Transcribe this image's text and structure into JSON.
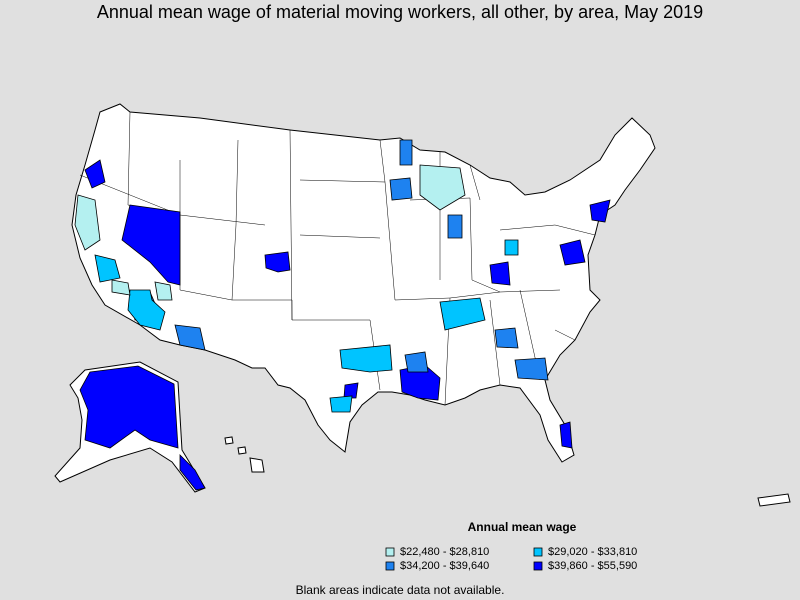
{
  "title": "Annual mean wage of material moving workers, all other, by area, May 2019",
  "legend": {
    "title": "Annual mean wage",
    "entries": [
      {
        "label": "$22,480 - $28,810",
        "color": "#b4f0f0"
      },
      {
        "label": "$29,020 - $33,810",
        "color": "#00c4ff"
      },
      {
        "label": "$34,200 - $39,640",
        "color": "#1e82f0"
      },
      {
        "label": "$39,860 - $55,590",
        "color": "#0000ff"
      }
    ]
  },
  "footnote": "Blank areas indicate data not available."
}
